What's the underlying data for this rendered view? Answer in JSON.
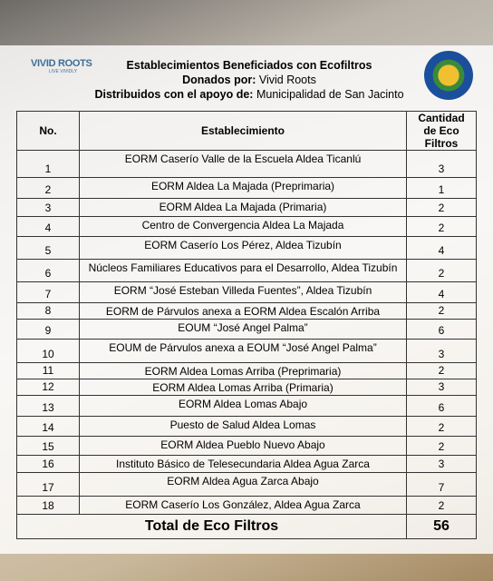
{
  "logo": {
    "name": "VIVID ROOTS",
    "tagline": "LIVE VIVIDLY"
  },
  "header": {
    "title": "Establecimientos Beneficiados con Ecofiltros",
    "donated_label": "Donados por:",
    "donated_value": "Vivid Roots",
    "distributed_label": "Distribuidos con el apoyo de:",
    "distributed_value": "Municipalidad de San Jacinto"
  },
  "table": {
    "columns": [
      "No.",
      "Establecimiento",
      "Cantidad de Eco Filtros"
    ],
    "rows": [
      [
        1,
        "EORM Caserío Valle de la Escuela Aldea Ticanlú",
        3
      ],
      [
        2,
        "EORM Aldea La Majada (Preprimaria)",
        1
      ],
      [
        3,
        "EORM Aldea La Majada (Primaria)",
        2
      ],
      [
        4,
        "Centro de Convergencia Aldea La Majada",
        2
      ],
      [
        5,
        "EORM Caserío Los Pérez, Aldea Tizubín",
        4
      ],
      [
        6,
        "Núcleos Familiares Educativos para el Desarrollo, Aldea Tizubín",
        2
      ],
      [
        7,
        "EORM “José Esteban Villeda Fuentes”, Aldea Tizubín",
        4
      ],
      [
        8,
        "EORM de Párvulos anexa a EORM Aldea Escalón Arriba",
        2
      ],
      [
        9,
        "EOUM “José Angel Palma”",
        6
      ],
      [
        10,
        "EOUM de Párvulos anexa a EOUM “José Angel Palma”",
        3
      ],
      [
        11,
        "EORM Aldea Lomas Arriba (Preprimaria)",
        2
      ],
      [
        12,
        "EORM Aldea Lomas Arriba (Primaria)",
        3
      ],
      [
        13,
        "EORM Aldea Lomas Abajo",
        6
      ],
      [
        14,
        "Puesto de Salud Aldea Lomas",
        2
      ],
      [
        15,
        "EORM Aldea Pueblo Nuevo Abajo",
        2
      ],
      [
        16,
        "Instituto Básico de Telesecundaria Aldea Agua Zarca",
        3
      ],
      [
        17,
        "EORM Aldea Agua Zarca Abajo",
        7
      ],
      [
        18,
        "EORM Caserío Los González, Aldea Agua Zarca",
        2
      ]
    ],
    "total_label": "Total de Eco Filtros",
    "total_value": 56
  }
}
